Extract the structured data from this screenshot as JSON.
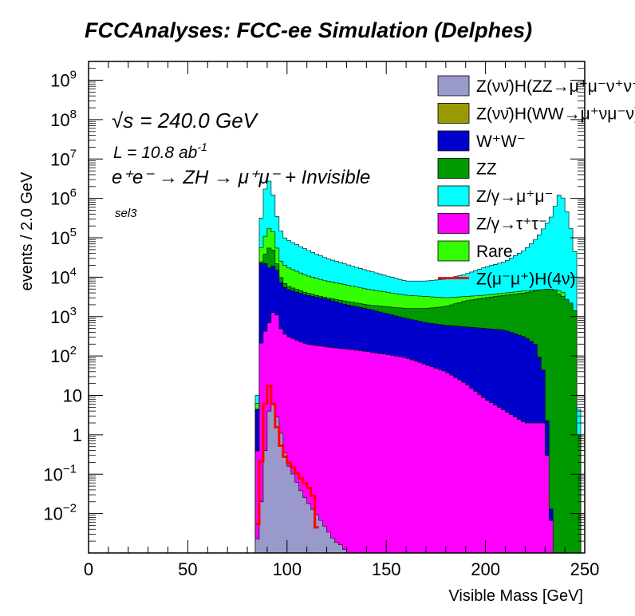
{
  "page_title": "FCCAnalyses: FCC-ee Simulation (Delphes)",
  "annotations": {
    "sqrt_s_symbol": "√s",
    "sqrt_s": "= 240.0 GeV",
    "lumi": "L = 10.8 ab",
    "lumi_exp": "-1",
    "process": "e⁺e⁻ → ZH → μ⁺μ⁻ + Invisible",
    "selection": "sel3"
  },
  "colors": {
    "ZZ_H_signal": "#9999cc",
    "WW_H_signal": "#999900",
    "WW": "#0000cc",
    "ZZ": "#009900",
    "Zmumu": "#00ffff",
    "Ztautau": "#ff00ff",
    "Rare": "#33ff00",
    "Z4nu": "#ff0000",
    "axis": "#000000"
  },
  "chart_data": {
    "type": "area",
    "stacked": true,
    "title": "FCCAnalyses: FCC-ee Simulation (Delphes)",
    "xlabel": "Visible Mass [GeV]",
    "ylabel": "events / 2.0 GeV",
    "xlim": [
      0,
      250
    ],
    "ylim": [
      0.001,
      3000000000
    ],
    "yscale": "log",
    "bin_width": 2,
    "xticks": [
      0,
      50,
      100,
      150,
      200,
      250
    ],
    "yticks": [
      {
        "value": 0.01,
        "base": "10",
        "exp": "−2"
      },
      {
        "value": 0.1,
        "base": "10",
        "exp": "−1"
      },
      {
        "value": 1,
        "base": "1",
        "exp": ""
      },
      {
        "value": 10,
        "base": "10",
        "exp": ""
      },
      {
        "value": 100,
        "base": "10",
        "exp": "2"
      },
      {
        "value": 1000,
        "base": "10",
        "exp": "3"
      },
      {
        "value": 10000,
        "base": "10",
        "exp": "4"
      },
      {
        "value": 100000,
        "base": "10",
        "exp": "5"
      },
      {
        "value": 1000000,
        "base": "10",
        "exp": "6"
      },
      {
        "value": 10000000,
        "base": "10",
        "exp": "7"
      },
      {
        "value": 100000000,
        "base": "10",
        "exp": "8"
      },
      {
        "value": 1000000000,
        "base": "10",
        "exp": "9"
      }
    ],
    "legend_position": "top-right",
    "legend": [
      {
        "label": "Z(νν̄)H(ZZ→μ⁺μ⁻ν⁺ν⁻)",
        "color": "#9999cc",
        "style": "fill"
      },
      {
        "label": "Z(νν̄)H(WW→μ⁺νμ⁻ν)",
        "color": "#999900",
        "style": "fill"
      },
      {
        "label": "W⁺W⁻",
        "color": "#0000cc",
        "style": "fill"
      },
      {
        "label": "ZZ",
        "color": "#009900",
        "style": "fill"
      },
      {
        "label": "Z/γ→μ⁺μ⁻",
        "color": "#00ffff",
        "style": "fill"
      },
      {
        "label": "Z/γ→τ⁺τ⁻",
        "color": "#ff00ff",
        "style": "fill"
      },
      {
        "label": "Rare",
        "color": "#33ff00",
        "style": "fill"
      },
      {
        "label": "Z(μ⁻μ⁺)H(4ν)",
        "color": "#ff0000",
        "style": "line"
      }
    ],
    "stack_totals": [
      {
        "name": "Z(νν̄)H(ZZ→μ⁺μ⁻ν⁺ν⁻)",
        "x": [
          84,
          86,
          88,
          90,
          92,
          94,
          96,
          98,
          100,
          104,
          108,
          112,
          116,
          120,
          124,
          128,
          130
        ],
        "y": [
          0.001,
          0.005,
          0.08,
          2.0,
          8.0,
          4.0,
          2.0,
          0.6,
          0.2,
          0.08,
          0.03,
          0.015,
          0.008,
          0.004,
          0.002,
          0.0015,
          0.001
        ]
      },
      {
        "name": "Z(νν̄)H(WW→μ⁺νμ⁻ν)",
        "x": [
          84,
          86,
          88,
          90,
          92,
          94,
          96,
          98,
          100,
          104,
          108,
          112,
          116,
          120
        ],
        "y": [
          0.001,
          0.002,
          0.05,
          0.6,
          2.0,
          0.5,
          0.2,
          0.05,
          0.015,
          0.005,
          0.003,
          0.002,
          0.0015,
          0.001
        ]
      },
      {
        "name": "Z/γ→τ⁺τ⁻",
        "x": [
          84,
          86,
          88,
          90,
          92,
          94,
          96,
          98,
          100,
          105,
          110,
          120,
          130,
          140,
          150,
          160,
          170,
          180,
          190,
          200,
          210,
          220,
          230,
          234
        ],
        "y": [
          0.001,
          150,
          300,
          600,
          800,
          2000,
          600,
          400,
          320,
          250,
          200,
          170,
          150,
          130,
          110,
          90,
          60,
          40,
          20,
          8,
          4,
          2,
          2,
          0.001
        ]
      },
      {
        "name": "W⁺W⁻",
        "x": [
          84,
          86,
          88,
          90,
          92,
          94,
          96,
          98,
          100,
          110,
          120,
          130,
          140,
          150,
          160,
          170,
          180,
          190,
          200,
          210,
          220,
          225,
          230,
          234
        ],
        "y": [
          0.001,
          20000,
          25000,
          20000,
          15000,
          25000,
          9000,
          6000,
          5000,
          3500,
          2800,
          2000,
          1600,
          1200,
          900,
          700,
          600,
          550,
          500,
          450,
          300,
          200,
          30,
          0.001
        ]
      },
      {
        "name": "ZZ",
        "x": [
          84,
          86,
          88,
          90,
          92,
          94,
          96,
          98,
          100,
          110,
          120,
          140,
          160,
          170,
          180,
          190,
          200,
          210,
          220,
          230,
          234,
          236,
          240,
          244,
          246,
          248
        ],
        "y": [
          0.001,
          20000,
          30000,
          50000,
          60000,
          40000,
          12000,
          8000,
          6000,
          4000,
          3000,
          2000,
          1600,
          1600,
          1800,
          2500,
          3000,
          3500,
          4000,
          5000,
          5000,
          4000,
          3000,
          2000,
          1000,
          0.001
        ]
      },
      {
        "name": "Rare",
        "x": [
          84,
          86,
          88,
          90,
          92,
          94,
          96,
          98,
          100,
          110,
          120,
          140,
          160,
          180,
          200,
          220,
          234,
          240,
          248
        ],
        "y": [
          0.001,
          40000,
          80000,
          150000,
          200000,
          100000,
          30000,
          22000,
          18000,
          11000,
          8000,
          5000,
          3500,
          3000,
          3500,
          4500,
          5000,
          4000,
          0.001
        ]
      },
      {
        "name": "Z/γ→μ⁺μ⁻",
        "x": [
          84,
          86,
          88,
          90,
          92,
          94,
          96,
          98,
          100,
          110,
          120,
          140,
          160,
          170,
          180,
          190,
          200,
          210,
          220,
          226,
          230,
          234,
          236,
          238,
          240,
          242,
          244,
          246,
          248
        ],
        "y": [
          0.001,
          100000,
          1000000,
          3000000,
          2500000,
          600000,
          200000,
          110000,
          90000,
          50000,
          30000,
          15000,
          8000,
          8000,
          9000,
          12000,
          18000,
          25000,
          50000,
          100000,
          200000,
          400000,
          1000000,
          1500000,
          700000,
          300000,
          100000,
          20000,
          0.001
        ]
      }
    ],
    "series": [
      {
        "name": "Z(μ⁻μ⁺)H(4ν)",
        "style": "line",
        "x": [
          84,
          86,
          88,
          90,
          92,
          94,
          96,
          98,
          100,
          102,
          104,
          106,
          108,
          110,
          112,
          114,
          116
        ],
        "y": [
          0.001,
          0.03,
          1.5,
          25,
          12,
          3,
          0.8,
          0.35,
          0.22,
          0.17,
          0.13,
          0.09,
          0.07,
          0.05,
          0.04,
          0.02,
          0.001
        ]
      }
    ]
  }
}
